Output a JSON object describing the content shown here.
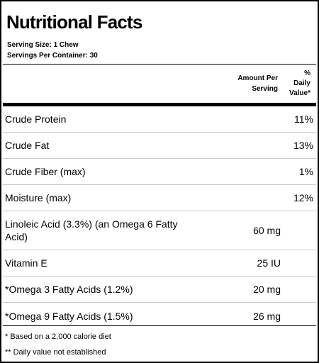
{
  "label": {
    "title": "Nutritional Facts",
    "serving_size": "Serving Size:  1 Chew",
    "servings_per_container": "Servings Per Container:  30"
  },
  "columns": {
    "amount_line1": "Amount Per",
    "amount_line2": "Serving",
    "dv_line1": "%",
    "dv_line2": "Daily",
    "dv_line3": "Value*"
  },
  "rows": [
    {
      "nutrient": "Crude Protein",
      "amount": "",
      "dv": "11%"
    },
    {
      "nutrient": "Crude Fat",
      "amount": "",
      "dv": "13%"
    },
    {
      "nutrient": "Crude Fiber (max)",
      "amount": "",
      "dv": "1%"
    },
    {
      "nutrient": "Moisture (max)",
      "amount": "",
      "dv": "12%"
    },
    {
      "nutrient": "Linoleic Acid (3.3%) (an Omega 6 Fatty Acid)",
      "amount": "60 mg",
      "dv": ""
    },
    {
      "nutrient": "Vitamin E",
      "amount": "25 IU",
      "dv": ""
    },
    {
      "nutrient": "*Omega 3 Fatty Acids (1.2%)",
      "amount": "20 mg",
      "dv": ""
    },
    {
      "nutrient": "*Omega 9 Fatty Acids (1.5%)",
      "amount": "26 mg",
      "dv": ""
    }
  ],
  "footnotes": {
    "note1": "* Based on a 2,000 calorie diet",
    "note2": "** Daily value not established"
  }
}
